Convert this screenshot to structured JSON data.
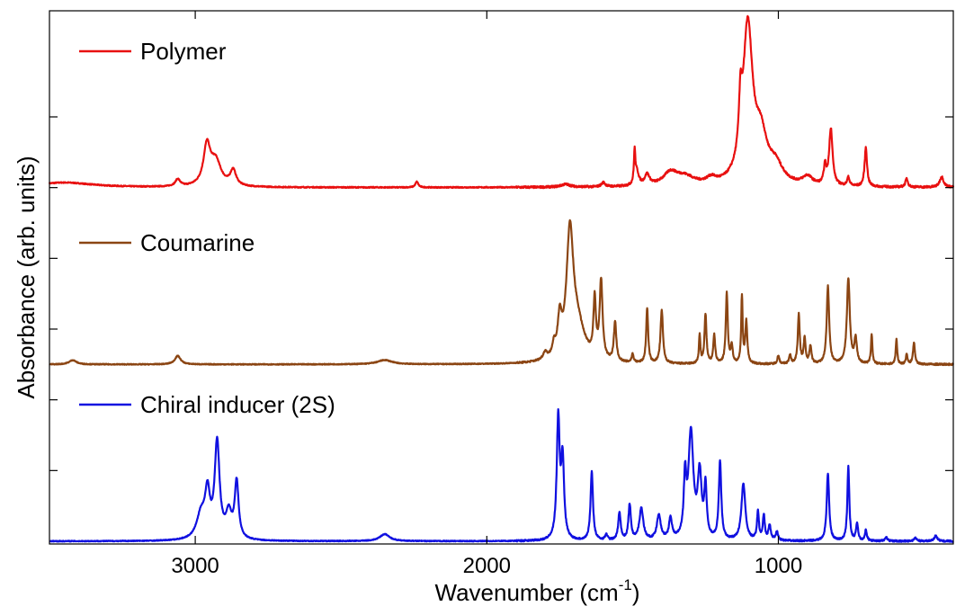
{
  "chart_data": {
    "type": "line",
    "title": "",
    "xlabel": "Wavenumber (cm",
    "xlabel_sup": "-1",
    "xlabel_end": ")",
    "ylabel": "Absorbance (arb. units)",
    "x_reversed": true,
    "xlim": [
      3500,
      400
    ],
    "ylim": [
      0,
      7.5
    ],
    "x_ticks": [
      3000,
      2000,
      1000
    ],
    "x_tick_labels": [
      "3000",
      "2000",
      "1000"
    ],
    "y_ticks": [
      1,
      2,
      3,
      4,
      5,
      6
    ],
    "y_tick_labels_shown": false,
    "grid": false,
    "legend": "inline-left",
    "series": [
      {
        "name": "Polymer",
        "color": "#e81010",
        "baseline": 5.0,
        "noise": 0.015,
        "peaks": [
          [
            3450,
            0.07,
            120
          ],
          [
            3060,
            0.1,
            10
          ],
          [
            2960,
            0.55,
            14
          ],
          [
            2930,
            0.35,
            22
          ],
          [
            2870,
            0.22,
            12
          ],
          [
            2240,
            0.08,
            6
          ],
          [
            1730,
            0.04,
            20
          ],
          [
            1600,
            0.06,
            8
          ],
          [
            1493,
            0.45,
            3
          ],
          [
            1485,
            0.18,
            8
          ],
          [
            1450,
            0.15,
            10
          ],
          [
            1370,
            0.18,
            30
          ],
          [
            1320,
            0.12,
            40
          ],
          [
            1230,
            0.08,
            20
          ],
          [
            1130,
            0.7,
            6
          ],
          [
            1105,
            2.2,
            20
          ],
          [
            1060,
            0.6,
            25
          ],
          [
            1010,
            0.25,
            30
          ],
          [
            900,
            0.12,
            20
          ],
          [
            840,
            0.25,
            5
          ],
          [
            820,
            0.8,
            7
          ],
          [
            760,
            0.12,
            5
          ],
          [
            700,
            0.55,
            5
          ],
          [
            560,
            0.12,
            5
          ],
          [
            440,
            0.15,
            8
          ]
        ]
      },
      {
        "name": "Coumarine",
        "color": "#8b4513",
        "baseline": 2.5,
        "noise": 0.012,
        "peaks": [
          [
            3420,
            0.06,
            15
          ],
          [
            3060,
            0.12,
            12
          ],
          [
            2350,
            0.06,
            30
          ],
          [
            1800,
            0.1,
            8
          ],
          [
            1770,
            0.15,
            6
          ],
          [
            1750,
            0.5,
            8
          ],
          [
            1715,
            1.7,
            14
          ],
          [
            1690,
            0.5,
            30
          ],
          [
            1630,
            0.8,
            5
          ],
          [
            1608,
            1.1,
            6
          ],
          [
            1560,
            0.55,
            5
          ],
          [
            1500,
            0.12,
            4
          ],
          [
            1450,
            0.78,
            4
          ],
          [
            1400,
            0.75,
            5
          ],
          [
            1270,
            0.4,
            3
          ],
          [
            1250,
            0.7,
            4
          ],
          [
            1220,
            0.4,
            4
          ],
          [
            1177,
            1.0,
            4
          ],
          [
            1160,
            0.25,
            4
          ],
          [
            1125,
            0.95,
            3
          ],
          [
            1110,
            0.6,
            4
          ],
          [
            1000,
            0.12,
            4
          ],
          [
            960,
            0.12,
            4
          ],
          [
            930,
            0.7,
            4
          ],
          [
            910,
            0.35,
            4
          ],
          [
            890,
            0.25,
            4
          ],
          [
            830,
            1.1,
            5
          ],
          [
            760,
            1.2,
            6
          ],
          [
            735,
            0.35,
            5
          ],
          [
            680,
            0.42,
            3
          ],
          [
            595,
            0.35,
            3
          ],
          [
            560,
            0.15,
            3
          ],
          [
            535,
            0.3,
            4
          ]
        ]
      },
      {
        "name": "Chiral inducer (2S)",
        "color": "#1010e0",
        "baseline": 0.0,
        "noise": 0.012,
        "peaks": [
          [
            2980,
            0.35,
            18
          ],
          [
            2958,
            0.6,
            10
          ],
          [
            2925,
            1.35,
            10
          ],
          [
            2885,
            0.35,
            12
          ],
          [
            2858,
            0.8,
            8
          ],
          [
            2350,
            0.1,
            20
          ],
          [
            1755,
            1.7,
            6
          ],
          [
            1740,
            1.1,
            6
          ],
          [
            1640,
            0.98,
            5
          ],
          [
            1590,
            0.08,
            5
          ],
          [
            1545,
            0.4,
            5
          ],
          [
            1510,
            0.5,
            5
          ],
          [
            1470,
            0.45,
            8
          ],
          [
            1410,
            0.35,
            8
          ],
          [
            1370,
            0.3,
            6
          ],
          [
            1320,
            0.8,
            5
          ],
          [
            1300,
            1.5,
            10
          ],
          [
            1270,
            0.9,
            8
          ],
          [
            1250,
            0.7,
            5
          ],
          [
            1200,
            1.1,
            5
          ],
          [
            1120,
            0.8,
            8
          ],
          [
            1070,
            0.4,
            4
          ],
          [
            1050,
            0.35,
            4
          ],
          [
            1030,
            0.2,
            5
          ],
          [
            1005,
            0.12,
            5
          ],
          [
            830,
            0.95,
            5
          ],
          [
            760,
            1.05,
            4
          ],
          [
            730,
            0.25,
            4
          ],
          [
            700,
            0.15,
            4
          ],
          [
            630,
            0.05,
            5
          ],
          [
            530,
            0.05,
            5
          ],
          [
            460,
            0.08,
            6
          ]
        ]
      }
    ]
  }
}
